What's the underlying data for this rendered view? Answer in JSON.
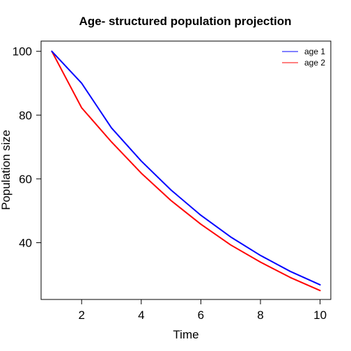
{
  "chart_data": {
    "type": "line",
    "title": "Age- structured population projection",
    "xlabel": "Time",
    "ylabel": "Population size",
    "x": [
      1,
      2,
      3,
      4,
      5,
      6,
      7,
      8,
      9,
      10
    ],
    "xlim": [
      0.64,
      10.36
    ],
    "ylim": [
      22.2,
      103.2
    ],
    "xticks": [
      2,
      4,
      6,
      8,
      10
    ],
    "yticks": [
      40,
      60,
      80,
      100
    ],
    "grid": false,
    "legend_position": "top-right",
    "series": [
      {
        "name": "age 1",
        "color": "#0000ff",
        "values": [
          100,
          90.0,
          76.0,
          65.6,
          56.5,
          48.6,
          41.8,
          36.0,
          31.0,
          26.8
        ]
      },
      {
        "name": "age 2",
        "color": "#ff0000",
        "values": [
          100,
          82.3,
          71.6,
          61.8,
          53.2,
          45.8,
          39.3,
          33.9,
          29.1,
          25.0
        ]
      }
    ]
  }
}
